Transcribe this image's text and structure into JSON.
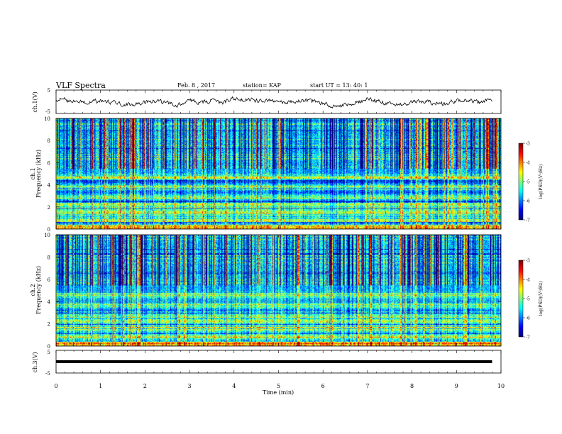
{
  "header": {
    "title": "VLF Spectra",
    "date": "Feb. 8 , 2017",
    "station": "station= KAP",
    "start": "start UT =  13: 40: 1"
  },
  "chart_data": [
    {
      "type": "line",
      "ylabel": "ch.1(V)",
      "ylim": [
        -5,
        5
      ],
      "yticks": [
        "5",
        "-5"
      ],
      "x": [
        0,
        0.25,
        0.5,
        0.75,
        1,
        1.25,
        1.5,
        1.75,
        2,
        2.25,
        2.5,
        2.75,
        3,
        3.25,
        3.5,
        3.75,
        4,
        4.25,
        4.5,
        4.75,
        5,
        5.25,
        5.5,
        5.75,
        6,
        6.25,
        6.5,
        6.75,
        7,
        7.25,
        7.5,
        7.75,
        8,
        8.25,
        8.5,
        8.75,
        9,
        9.25,
        9.5,
        9.75,
        9.8
      ],
      "y": [
        1.2,
        0.8,
        0.2,
        -0.5,
        0.5,
        -0.3,
        -1.0,
        -1.6,
        -0.2,
        0.3,
        -0.6,
        -1.2,
        0.4,
        -0.2,
        0.6,
        -0.4,
        1.5,
        1.0,
        0.4,
        0.9,
        -0.6,
        0.2,
        0.7,
        0.3,
        -0.8,
        -2.0,
        -1.5,
        -0.2,
        0.9,
        0.4,
        -0.7,
        -1.2,
        -0.3,
        0.2,
        -0.4,
        -0.8,
        0.3,
        0.5,
        -0.2,
        0.5,
        0.3
      ]
    },
    {
      "type": "heatmap",
      "ylabel": "ch.1",
      "ylabel2": "Frequency (kHz)",
      "ylim": [
        0,
        10
      ],
      "yticks": [
        "0",
        "2",
        "4",
        "6",
        "8",
        "10"
      ],
      "colorbar": {
        "label": "log(PSD)(V²/Hz)",
        "ticks": [
          "-3",
          "-4",
          "-5",
          "-6",
          "-7"
        ],
        "range": [
          -7,
          -3
        ]
      }
    },
    {
      "type": "heatmap",
      "ylabel": "ch.2",
      "ylabel2": "Frequency (kHz)",
      "ylim": [
        0,
        10
      ],
      "yticks": [
        "0",
        "2",
        "4",
        "6",
        "8",
        "10"
      ],
      "colorbar": {
        "label": "log(PSD)(V²/Hz)",
        "ticks": [
          "-3",
          "-4",
          "-5",
          "-6",
          "-7"
        ],
        "range": [
          -7,
          -3
        ]
      }
    },
    {
      "type": "line",
      "ylabel": "ch.3(V)",
      "ylim": [
        -5,
        5
      ],
      "yticks": [
        "5",
        "-5"
      ],
      "x": [
        0,
        9.8
      ],
      "y": [
        0,
        0
      ]
    }
  ],
  "xaxis": {
    "label": "Time (min)",
    "ticks": [
      "0",
      "1",
      "2",
      "3",
      "4",
      "5",
      "6",
      "7",
      "8",
      "9",
      "10"
    ],
    "xlim": [
      0,
      10
    ]
  }
}
